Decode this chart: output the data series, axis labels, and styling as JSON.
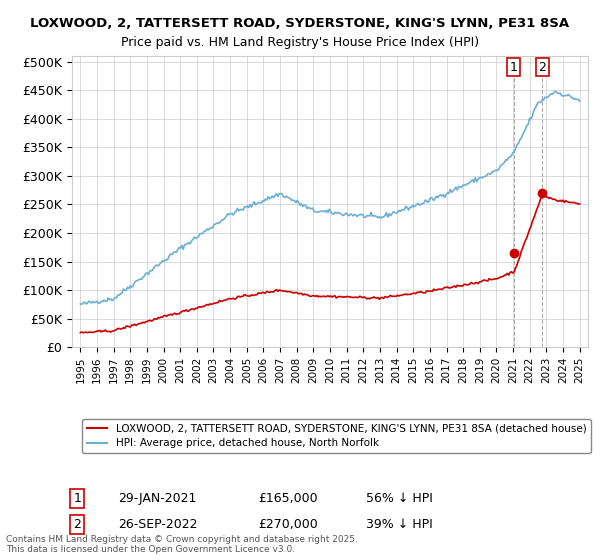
{
  "title_line1": "LOXWOOD, 2, TATTERSETT ROAD, SYDERSTONE, KING'S LYNN, PE31 8SA",
  "title_line2": "Price paid vs. HM Land Registry's House Price Index (HPI)",
  "ylabel_ticks": [
    "£0",
    "£50K",
    "£100K",
    "£150K",
    "£200K",
    "£250K",
    "£300K",
    "£350K",
    "£400K",
    "£450K",
    "£500K"
  ],
  "ytick_values": [
    0,
    50000,
    100000,
    150000,
    200000,
    250000,
    300000,
    350000,
    400000,
    450000,
    500000
  ],
  "ylim": [
    0,
    510000
  ],
  "xlim_start": 1995,
  "xlim_end": 2025.5,
  "hpi_color": "#6baed6",
  "price_color": "#cc0000",
  "transaction_color_1": "#cc0000",
  "transaction_color_2": "#cc0000",
  "legend_label_red": "LOXWOOD, 2, TATTERSETT ROAD, SYDERSTONE, KING'S LYNN, PE31 8SA (detached house)",
  "legend_label_blue": "HPI: Average price, detached house, North Norfolk",
  "annotation_1_label": "1",
  "annotation_1_date": "29-JAN-2021",
  "annotation_1_price": "£165,000",
  "annotation_1_hpi": "56% ↓ HPI",
  "annotation_2_label": "2",
  "annotation_2_date": "26-SEP-2022",
  "annotation_2_price": "£270,000",
  "annotation_2_hpi": "39% ↓ HPI",
  "footer": "Contains HM Land Registry data © Crown copyright and database right 2025.\nThis data is licensed under the Open Government Licence v3.0.",
  "background_color": "#ffffff",
  "grid_color": "#cccccc",
  "hpi_start_year": 1995,
  "transaction_1_x": 2021.08,
  "transaction_1_y": 165000,
  "transaction_2_x": 2022.74,
  "transaction_2_y": 270000
}
